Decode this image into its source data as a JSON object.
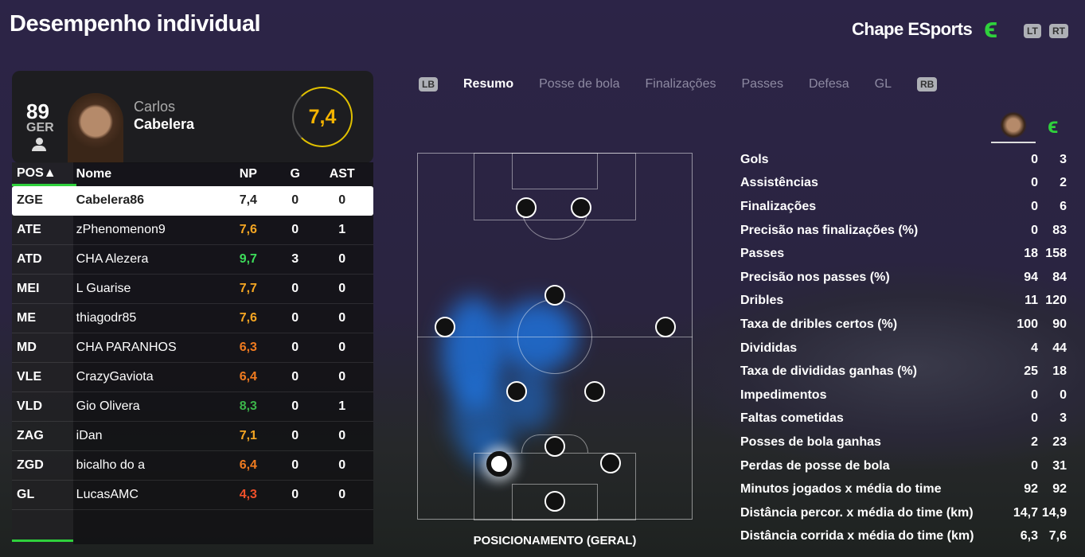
{
  "header": {
    "title": "Desempenho individual",
    "team": "Chape ESports",
    "lt": "LT",
    "rt": "RT"
  },
  "tabs": {
    "lb": "LB",
    "rb": "RB",
    "items": [
      "Resumo",
      "Posse de bola",
      "Finalizações",
      "Passes",
      "Defesa",
      "GL"
    ],
    "active": 0
  },
  "player": {
    "overall": "89",
    "position": "GER",
    "first_name": "Carlos",
    "last_name": "Cabelera",
    "rating": "7,4",
    "rating_color": "#f5b400"
  },
  "table": {
    "headers": [
      "POS▲",
      "Nome",
      "NP",
      "G",
      "AST"
    ],
    "rows": [
      {
        "pos": "ZGE",
        "name": "Cabelera86",
        "np": "7,4",
        "g": "0",
        "ast": "0",
        "color": "#222222"
      },
      {
        "pos": "ATE",
        "name": "zPhenomenon9",
        "np": "7,6",
        "g": "0",
        "ast": "1",
        "color": "#f5a623"
      },
      {
        "pos": "ATD",
        "name": "CHA Alezera",
        "np": "9,7",
        "g": "3",
        "ast": "0",
        "color": "#3ddc5a"
      },
      {
        "pos": "MEI",
        "name": "L Guarise",
        "np": "7,7",
        "g": "0",
        "ast": "0",
        "color": "#f5a623"
      },
      {
        "pos": "ME",
        "name": "thiagodr85",
        "np": "7,6",
        "g": "0",
        "ast": "0",
        "color": "#f5a623"
      },
      {
        "pos": "MD",
        "name": "CHA PARANHOS",
        "np": "6,3",
        "g": "0",
        "ast": "0",
        "color": "#f07b20"
      },
      {
        "pos": "VLE",
        "name": "CrazyGaviota",
        "np": "6,4",
        "g": "0",
        "ast": "0",
        "color": "#f07b20"
      },
      {
        "pos": "VLD",
        "name": "Gio Olivera",
        "np": "8,3",
        "g": "0",
        "ast": "1",
        "color": "#3cb54a"
      },
      {
        "pos": "ZAG",
        "name": "iDan",
        "np": "7,1",
        "g": "0",
        "ast": "0",
        "color": "#f5a623"
      },
      {
        "pos": "ZGD",
        "name": "bicalho do a",
        "np": "6,4",
        "g": "0",
        "ast": "0",
        "color": "#f07b20"
      },
      {
        "pos": "GL",
        "name": "LucasAMC",
        "np": "4,3",
        "g": "0",
        "ast": "0",
        "color": "#f0502a"
      }
    ]
  },
  "pitch_label": "POSICIONAMENTO (GERAL)",
  "stats": [
    {
      "label": "Gols",
      "player": "0",
      "team": "3"
    },
    {
      "label": "Assistências",
      "player": "0",
      "team": "2"
    },
    {
      "label": "Finalizações",
      "player": "0",
      "team": "6"
    },
    {
      "label": "Precisão nas finalizações (%)",
      "player": "0",
      "team": "83"
    },
    {
      "label": "Passes",
      "player": "18",
      "team": "158"
    },
    {
      "label": "Precisão nos passes (%)",
      "player": "94",
      "team": "84"
    },
    {
      "label": "Dribles",
      "player": "11",
      "team": "120"
    },
    {
      "label": "Taxa de dribles certos (%)",
      "player": "100",
      "team": "90"
    },
    {
      "label": "Divididas",
      "player": "4",
      "team": "44"
    },
    {
      "label": "Taxa de divididas ganhas (%)",
      "player": "25",
      "team": "18"
    },
    {
      "label": "Impedimentos",
      "player": "0",
      "team": "0"
    },
    {
      "label": "Faltas cometidas",
      "player": "0",
      "team": "3"
    },
    {
      "label": "Posses de bola ganhas",
      "player": "2",
      "team": "23"
    },
    {
      "label": "Perdas de posse de bola",
      "player": "0",
      "team": "31"
    },
    {
      "label": "Minutos jogados x média do time",
      "player": "92",
      "team": "92"
    },
    {
      "label": "Distância percor. x média do time (km)",
      "player": "14,7",
      "team": "14,9"
    },
    {
      "label": "Distância corrida x média do time (km)",
      "player": "6,3",
      "team": "7,6"
    }
  ]
}
